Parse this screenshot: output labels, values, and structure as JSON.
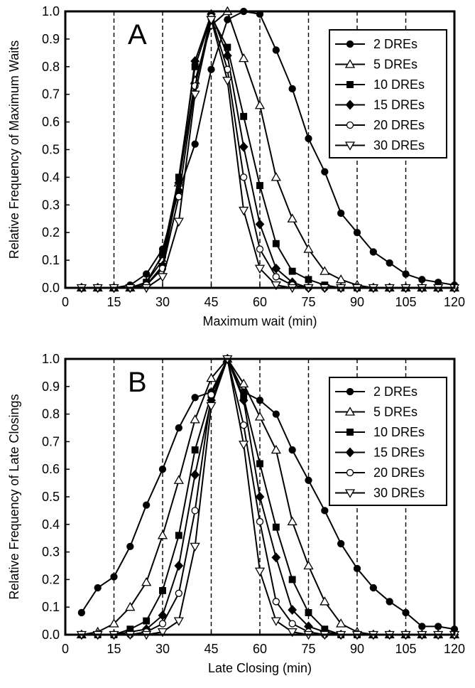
{
  "chart_data": [
    {
      "type": "line",
      "panel_label": "A",
      "xlabel": "Maximum wait (min)",
      "ylabel": "Relative Frequency of Maximum Waits",
      "xlim": [
        0,
        120
      ],
      "ylim": [
        0,
        1.0
      ],
      "xticks": [
        0,
        15,
        30,
        45,
        60,
        75,
        90,
        105,
        120
      ],
      "yticks": [
        0.0,
        0.1,
        0.2,
        0.3,
        0.4,
        0.5,
        0.6,
        0.7,
        0.8,
        0.9,
        1.0
      ],
      "ytick_labels": [
        "0.0",
        "0.1",
        "0.2",
        "0.3",
        "0.4",
        "0.5",
        "0.6",
        "0.7",
        "0.8",
        "0.9",
        "1.0"
      ],
      "vlines": [
        15,
        30,
        45,
        60,
        75,
        90,
        105
      ],
      "legend_position": "top-right",
      "grid": false,
      "series": [
        {
          "name": "2 DREs",
          "marker": "circle-filled",
          "x": [
            5,
            10,
            15,
            20,
            25,
            30,
            35,
            40,
            45,
            50,
            55,
            60,
            65,
            70,
            75,
            80,
            85,
            90,
            95,
            100,
            105,
            110,
            115,
            120
          ],
          "y": [
            0,
            0,
            0,
            0.01,
            0.05,
            0.14,
            0.35,
            0.52,
            0.79,
            0.97,
            1.0,
            0.99,
            0.86,
            0.72,
            0.54,
            0.42,
            0.27,
            0.2,
            0.13,
            0.09,
            0.05,
            0.03,
            0.02,
            0.01
          ]
        },
        {
          "name": "5 DREs",
          "marker": "triangle-up-open",
          "x": [
            5,
            10,
            15,
            20,
            25,
            30,
            35,
            40,
            45,
            50,
            55,
            60,
            65,
            70,
            75,
            80,
            85,
            90,
            95,
            100,
            105,
            110,
            115,
            120
          ],
          "y": [
            0,
            0,
            0,
            0,
            0.02,
            0.1,
            0.38,
            0.75,
            0.95,
            1.0,
            0.83,
            0.66,
            0.4,
            0.25,
            0.14,
            0.06,
            0.03,
            0.01,
            0,
            0,
            0,
            0,
            0,
            0
          ]
        },
        {
          "name": "10 DREs",
          "marker": "square-filled",
          "x": [
            5,
            10,
            15,
            20,
            25,
            30,
            35,
            40,
            45,
            50,
            55,
            60,
            65,
            70,
            75,
            80,
            85,
            90,
            95,
            100,
            105,
            110,
            115,
            120
          ],
          "y": [
            0,
            0,
            0,
            0,
            0.02,
            0.12,
            0.4,
            0.8,
            0.98,
            0.87,
            0.62,
            0.37,
            0.16,
            0.06,
            0.03,
            0.01,
            0,
            0,
            0,
            0,
            0,
            0,
            0,
            0
          ]
        },
        {
          "name": "15 DREs",
          "marker": "diamond-filled",
          "x": [
            5,
            10,
            15,
            20,
            25,
            30,
            35,
            40,
            45,
            50,
            55,
            60,
            65,
            70,
            75,
            80,
            85,
            90,
            95,
            100,
            105,
            110,
            115,
            120
          ],
          "y": [
            0,
            0,
            0,
            0,
            0.01,
            0.08,
            0.38,
            0.82,
            0.99,
            0.84,
            0.51,
            0.23,
            0.07,
            0.02,
            0,
            0,
            0,
            0,
            0,
            0,
            0,
            0,
            0,
            0
          ]
        },
        {
          "name": "20 DREs",
          "marker": "circle-open",
          "x": [
            5,
            10,
            15,
            20,
            25,
            30,
            35,
            40,
            45,
            50,
            55,
            60,
            65,
            70,
            75,
            80,
            85,
            90,
            95,
            100,
            105,
            110,
            115,
            120
          ],
          "y": [
            0,
            0,
            0,
            0,
            0.01,
            0.07,
            0.33,
            0.73,
            0.98,
            0.79,
            0.4,
            0.14,
            0.04,
            0.01,
            0,
            0,
            0,
            0,
            0,
            0,
            0,
            0,
            0,
            0
          ]
        },
        {
          "name": "30 DREs",
          "marker": "triangle-down-open",
          "x": [
            5,
            10,
            15,
            20,
            25,
            30,
            35,
            40,
            45,
            50,
            55,
            60,
            65,
            70,
            75,
            80,
            85,
            90,
            95,
            100,
            105,
            110,
            115,
            120
          ],
          "y": [
            0,
            0,
            0,
            0,
            0,
            0.04,
            0.24,
            0.7,
            0.97,
            0.75,
            0.28,
            0.07,
            0.01,
            0,
            0,
            0,
            0,
            0,
            0,
            0,
            0,
            0,
            0,
            0
          ]
        }
      ]
    },
    {
      "type": "line",
      "panel_label": "B",
      "xlabel": "Late Closing (min)",
      "ylabel": "Relative Frequency of Late Closings",
      "xlim": [
        0,
        120
      ],
      "ylim": [
        0,
        1.0
      ],
      "xticks": [
        0,
        15,
        30,
        45,
        60,
        75,
        90,
        105,
        120
      ],
      "yticks": [
        0.0,
        0.1,
        0.2,
        0.3,
        0.4,
        0.5,
        0.6,
        0.7,
        0.8,
        0.9,
        1.0
      ],
      "ytick_labels": [
        "0.0",
        "0.1",
        "0.2",
        "0.3",
        "0.4",
        "0.5",
        "0.6",
        "0.7",
        "0.8",
        "0.9",
        "1.0"
      ],
      "vlines": [
        15,
        30,
        45,
        60,
        75,
        90,
        105
      ],
      "legend_position": "top-right",
      "grid": false,
      "series": [
        {
          "name": "2 DREs",
          "marker": "circle-filled",
          "x": [
            5,
            10,
            15,
            20,
            25,
            30,
            35,
            40,
            45,
            50,
            55,
            60,
            65,
            70,
            75,
            80,
            85,
            90,
            95,
            100,
            105,
            110,
            115,
            120
          ],
          "y": [
            0.08,
            0.17,
            0.21,
            0.32,
            0.47,
            0.6,
            0.75,
            0.86,
            0.88,
            1.0,
            0.88,
            0.85,
            0.8,
            0.67,
            0.56,
            0.45,
            0.33,
            0.24,
            0.17,
            0.12,
            0.08,
            0.03,
            0.03,
            0.02
          ]
        },
        {
          "name": "5 DREs",
          "marker": "triangle-up-open",
          "x": [
            5,
            10,
            15,
            20,
            25,
            30,
            35,
            40,
            45,
            50,
            55,
            60,
            65,
            70,
            75,
            80,
            85,
            90,
            95,
            100,
            105,
            110,
            115,
            120
          ],
          "y": [
            0,
            0.01,
            0.04,
            0.1,
            0.19,
            0.36,
            0.56,
            0.78,
            0.93,
            1.0,
            0.91,
            0.79,
            0.67,
            0.41,
            0.25,
            0.12,
            0.04,
            0.01,
            0,
            0,
            0,
            0,
            0,
            0
          ]
        },
        {
          "name": "10 DREs",
          "marker": "square-filled",
          "x": [
            5,
            10,
            15,
            20,
            25,
            30,
            35,
            40,
            45,
            50,
            55,
            60,
            65,
            70,
            75,
            80,
            85,
            90,
            95,
            100,
            105,
            110,
            115,
            120
          ],
          "y": [
            0,
            0,
            0,
            0.02,
            0.05,
            0.16,
            0.36,
            0.67,
            0.87,
            1.0,
            0.86,
            0.62,
            0.39,
            0.2,
            0.08,
            0.02,
            0,
            0,
            0,
            0,
            0,
            0,
            0,
            0
          ]
        },
        {
          "name": "15 DREs",
          "marker": "diamond-filled",
          "x": [
            5,
            10,
            15,
            20,
            25,
            30,
            35,
            40,
            45,
            50,
            55,
            60,
            65,
            70,
            75,
            80,
            85,
            90,
            95,
            100,
            105,
            110,
            115,
            120
          ],
          "y": [
            0,
            0,
            0,
            0.01,
            0.02,
            0.07,
            0.25,
            0.58,
            0.85,
            1.0,
            0.85,
            0.5,
            0.28,
            0.09,
            0.03,
            0.01,
            0,
            0,
            0,
            0,
            0,
            0,
            0,
            0
          ]
        },
        {
          "name": "20 DREs",
          "marker": "circle-open",
          "x": [
            5,
            10,
            15,
            20,
            25,
            30,
            35,
            40,
            45,
            50,
            55,
            60,
            65,
            70,
            75,
            80,
            85,
            90,
            95,
            100,
            105,
            110,
            115,
            120
          ],
          "y": [
            0,
            0,
            0,
            0,
            0.01,
            0.04,
            0.15,
            0.45,
            0.87,
            1.0,
            0.76,
            0.41,
            0.12,
            0.04,
            0.01,
            0,
            0,
            0,
            0,
            0,
            0,
            0,
            0,
            0
          ]
        },
        {
          "name": "30 DREs",
          "marker": "triangle-down-open",
          "x": [
            5,
            10,
            15,
            20,
            25,
            30,
            35,
            40,
            45,
            50,
            55,
            60,
            65,
            70,
            75,
            80,
            85,
            90,
            95,
            100,
            105,
            110,
            115,
            120
          ],
          "y": [
            0,
            0,
            0,
            0,
            0,
            0.01,
            0.05,
            0.32,
            0.83,
            1.0,
            0.69,
            0.23,
            0.05,
            0.01,
            0,
            0,
            0,
            0,
            0,
            0,
            0,
            0,
            0,
            0
          ]
        }
      ]
    }
  ]
}
